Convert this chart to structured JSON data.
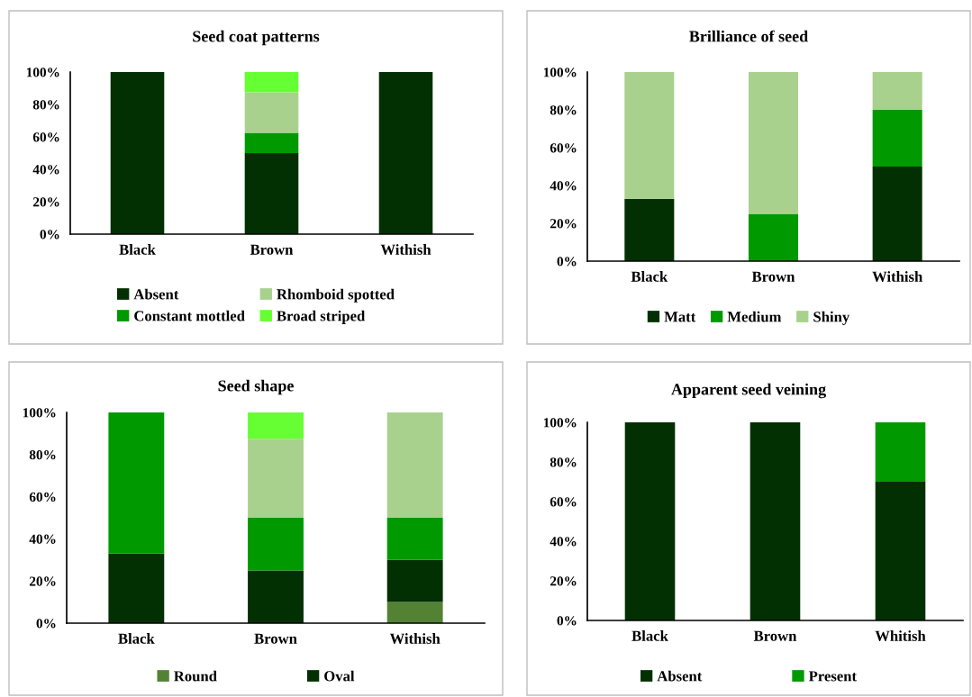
{
  "chart_data": [
    {
      "type": "bar",
      "title": "Seed coat patterns",
      "stacked": true,
      "categories": [
        "Black",
        "Brown",
        "Withish"
      ],
      "ylim": [
        0,
        100
      ],
      "yticks": [
        {
          "value": 0,
          "label": "0%"
        },
        {
          "value": 20,
          "label": "20%"
        },
        {
          "value": 40,
          "label": "40%"
        },
        {
          "value": 60,
          "label": "60%"
        },
        {
          "value": 80,
          "label": "80%"
        },
        {
          "value": 100,
          "label": "100%"
        }
      ],
      "grid": false,
      "legend": "bottom",
      "series": [
        {
          "name": "Absent",
          "color": "#033003",
          "values": [
            100,
            50,
            100
          ]
        },
        {
          "name": "Constant mottled",
          "color": "#009900",
          "values": [
            0,
            12.5,
            0
          ]
        },
        {
          "name": "Rhomboid spotted",
          "color": "#a9d18e",
          "values": [
            0,
            25,
            0
          ]
        },
        {
          "name": "Broad striped",
          "color": "#66ff33",
          "values": [
            0,
            12.5,
            0
          ]
        }
      ]
    },
    {
      "type": "bar",
      "title": "Brilliance of seed",
      "stacked": true,
      "categories": [
        "Black",
        "Brown",
        "Withish"
      ],
      "ylim": [
        0,
        100
      ],
      "yticks": [
        {
          "value": 0,
          "label": "0%"
        },
        {
          "value": 20,
          "label": "20%"
        },
        {
          "value": 40,
          "label": "40%"
        },
        {
          "value": 60,
          "label": "60%"
        },
        {
          "value": 80,
          "label": "80%"
        },
        {
          "value": 100,
          "label": "100%"
        }
      ],
      "grid": false,
      "legend": "bottom",
      "series": [
        {
          "name": "Matt",
          "color": "#033003",
          "values": [
            33,
            0,
            50
          ]
        },
        {
          "name": "Medium",
          "color": "#009900",
          "values": [
            0,
            25,
            30
          ]
        },
        {
          "name": "Shiny",
          "color": "#a9d18e",
          "values": [
            67,
            75,
            20
          ]
        }
      ]
    },
    {
      "type": "bar",
      "title": "Seed shape",
      "stacked": true,
      "categories": [
        "Black",
        "Brown",
        "Withish"
      ],
      "ylim": [
        0,
        100
      ],
      "yticks": [
        {
          "value": 0,
          "label": "0%"
        },
        {
          "value": 20,
          "label": "20%"
        },
        {
          "value": 40,
          "label": "40%"
        },
        {
          "value": 60,
          "label": "60%"
        },
        {
          "value": 80,
          "label": "80%"
        },
        {
          "value": 100,
          "label": "100%"
        }
      ],
      "grid": false,
      "legend": "bottom",
      "series": [
        {
          "name": "Round",
          "color": "#548235",
          "values": [
            0,
            0,
            10
          ]
        },
        {
          "name": "Oval",
          "color": "#033003",
          "values": [
            33,
            25,
            20
          ]
        },
        {
          "color": "#009900",
          "values": [
            67,
            25,
            20
          ]
        },
        {
          "color": "#a9d18e",
          "values": [
            0,
            37.5,
            50
          ]
        },
        {
          "color": "#66ff33",
          "values": [
            0,
            12.5,
            0
          ]
        }
      ]
    },
    {
      "type": "bar",
      "title": "Apparent seed veining",
      "stacked": true,
      "categories": [
        "Black",
        "Brown",
        "Whitish"
      ],
      "ylim": [
        0,
        100
      ],
      "yticks": [
        {
          "value": 0,
          "label": "0%"
        },
        {
          "value": 20,
          "label": "20%"
        },
        {
          "value": 40,
          "label": "40%"
        },
        {
          "value": 60,
          "label": "60%"
        },
        {
          "value": 80,
          "label": "80%"
        },
        {
          "value": 100,
          "label": "100%"
        }
      ],
      "grid": false,
      "legend": "bottom",
      "series": [
        {
          "name": "Absent",
          "color": "#033003",
          "values": [
            100,
            100,
            70
          ]
        },
        {
          "name": "Present",
          "color": "#009900",
          "values": [
            0,
            0,
            30
          ]
        }
      ]
    }
  ]
}
